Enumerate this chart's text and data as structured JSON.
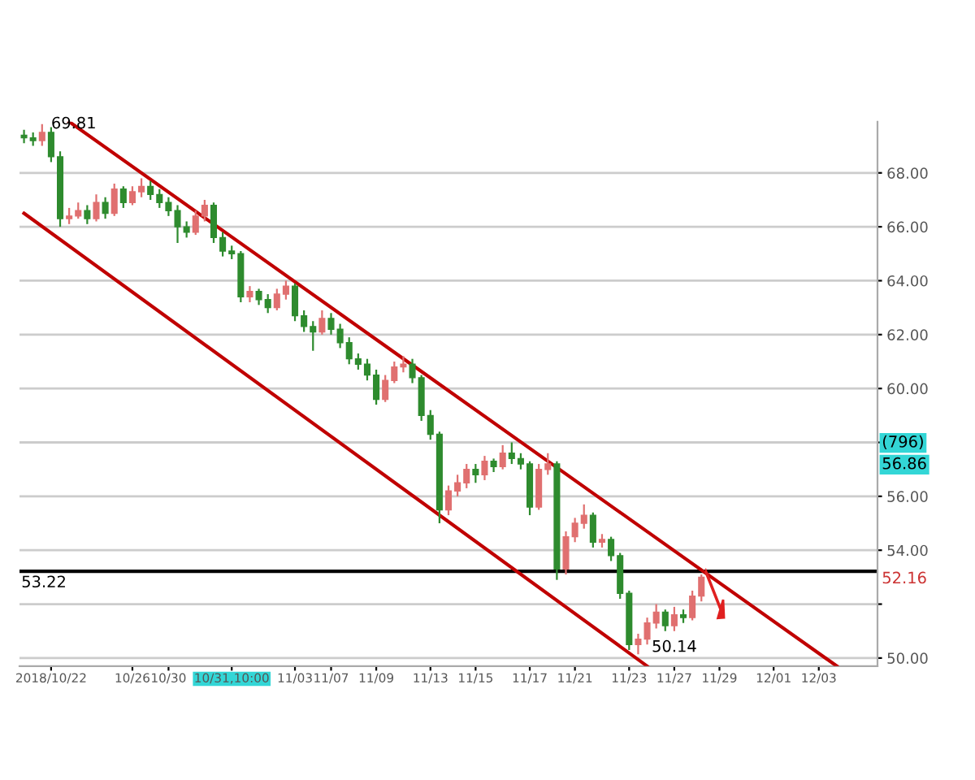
{
  "chart_data": {
    "type": "candlestick",
    "categories": [
      null,
      null,
      null,
      "2018/10/22",
      null,
      null,
      null,
      null,
      null,
      null,
      null,
      null,
      "10/26",
      null,
      null,
      null,
      "10/30",
      null,
      null,
      null,
      null,
      null,
      null,
      "10/31,10:00",
      null,
      null,
      null,
      null,
      null,
      null,
      "11/03",
      null,
      null,
      null,
      "11/07",
      null,
      null,
      null,
      null,
      "11/09",
      null,
      null,
      null,
      null,
      null,
      "11/13",
      null,
      null,
      null,
      null,
      "11/15",
      null,
      null,
      null,
      null,
      null,
      "11/17",
      null,
      null,
      null,
      null,
      "11/21",
      null,
      null,
      null,
      null,
      null,
      "11/23",
      null,
      null,
      null,
      null,
      "11/27",
      null,
      null,
      null,
      null,
      "11/29",
      null,
      null,
      null,
      null,
      null,
      "12/01",
      null,
      null,
      null,
      null,
      "12/03",
      null,
      null,
      null,
      null,
      null,
      null
    ],
    "ohlc": [
      [
        69.4,
        69.6,
        69.1,
        69.3
      ],
      [
        69.3,
        69.5,
        69.0,
        69.2
      ],
      [
        69.2,
        69.81,
        69.0,
        69.5
      ],
      [
        69.5,
        69.7,
        68.4,
        68.6
      ],
      [
        68.6,
        68.8,
        66.0,
        66.3
      ],
      [
        66.3,
        66.7,
        66.1,
        66.4
      ],
      [
        66.4,
        66.9,
        66.3,
        66.6
      ],
      [
        66.6,
        66.8,
        66.1,
        66.3
      ],
      [
        66.3,
        67.2,
        66.2,
        66.9
      ],
      [
        66.9,
        67.1,
        66.3,
        66.5
      ],
      [
        66.5,
        67.6,
        66.4,
        67.4
      ],
      [
        67.4,
        67.5,
        66.7,
        66.9
      ],
      [
        66.9,
        67.5,
        66.8,
        67.3
      ],
      [
        67.3,
        67.8,
        67.1,
        67.5
      ],
      [
        67.5,
        67.7,
        67.0,
        67.2
      ],
      [
        67.2,
        67.4,
        66.7,
        66.9
      ],
      [
        66.9,
        67.1,
        66.4,
        66.6
      ],
      [
        66.6,
        66.8,
        65.4,
        66.0
      ],
      [
        66.0,
        66.2,
        65.6,
        65.8
      ],
      [
        65.8,
        66.6,
        65.7,
        66.4
      ],
      [
        66.4,
        67.0,
        66.2,
        66.8
      ],
      [
        66.8,
        66.9,
        65.4,
        65.6
      ],
      [
        65.6,
        65.8,
        64.9,
        65.1
      ],
      [
        65.1,
        65.3,
        64.8,
        65.0
      ],
      [
        65.0,
        65.1,
        63.2,
        63.4
      ],
      [
        63.4,
        63.8,
        63.2,
        63.6
      ],
      [
        63.6,
        63.7,
        63.1,
        63.3
      ],
      [
        63.3,
        63.5,
        62.8,
        63.0
      ],
      [
        63.0,
        63.7,
        62.9,
        63.5
      ],
      [
        63.5,
        64.0,
        63.3,
        63.8
      ],
      [
        63.8,
        63.9,
        62.5,
        62.7
      ],
      [
        62.7,
        62.9,
        62.1,
        62.3
      ],
      [
        62.3,
        62.5,
        61.4,
        62.1
      ],
      [
        62.1,
        62.9,
        62.0,
        62.6
      ],
      [
        62.6,
        62.8,
        62.0,
        62.2
      ],
      [
        62.2,
        62.4,
        61.5,
        61.7
      ],
      [
        61.7,
        61.9,
        60.9,
        61.1
      ],
      [
        61.1,
        61.3,
        60.7,
        60.9
      ],
      [
        60.9,
        61.1,
        60.3,
        60.5
      ],
      [
        60.5,
        60.7,
        59.4,
        59.6
      ],
      [
        59.6,
        60.5,
        59.5,
        60.3
      ],
      [
        60.3,
        61.0,
        60.2,
        60.8
      ],
      [
        60.8,
        61.2,
        60.6,
        60.9
      ],
      [
        60.9,
        61.1,
        60.2,
        60.4
      ],
      [
        60.4,
        60.5,
        58.8,
        59.0
      ],
      [
        59.0,
        59.2,
        58.1,
        58.3
      ],
      [
        58.3,
        58.4,
        55.0,
        55.5
      ],
      [
        55.5,
        56.4,
        55.3,
        56.2
      ],
      [
        56.2,
        56.8,
        56.0,
        56.5
      ],
      [
        56.5,
        57.2,
        56.3,
        57.0
      ],
      [
        57.0,
        57.2,
        56.5,
        56.8
      ],
      [
        56.8,
        57.5,
        56.6,
        57.3
      ],
      [
        57.3,
        57.4,
        56.9,
        57.1
      ],
      [
        57.1,
        57.9,
        57.0,
        57.6
      ],
      [
        57.6,
        58.0,
        57.2,
        57.4
      ],
      [
        57.4,
        57.6,
        57.0,
        57.2
      ],
      [
        57.2,
        57.3,
        55.3,
        55.6
      ],
      [
        55.6,
        57.2,
        55.5,
        57.0
      ],
      [
        57.0,
        57.6,
        56.8,
        57.2
      ],
      [
        57.2,
        57.3,
        52.9,
        53.3
      ],
      [
        53.3,
        54.7,
        53.1,
        54.5
      ],
      [
        54.5,
        55.2,
        54.3,
        55.0
      ],
      [
        55.0,
        55.7,
        54.8,
        55.3
      ],
      [
        55.3,
        55.4,
        54.1,
        54.3
      ],
      [
        54.3,
        54.6,
        54.1,
        54.4
      ],
      [
        54.4,
        54.5,
        53.6,
        53.8
      ],
      [
        53.8,
        53.9,
        52.2,
        52.4
      ],
      [
        52.4,
        52.5,
        50.3,
        50.5
      ],
      [
        50.5,
        50.9,
        50.14,
        50.7
      ],
      [
        50.7,
        51.5,
        50.5,
        51.3
      ],
      [
        51.3,
        52.0,
        51.1,
        51.7
      ],
      [
        51.7,
        51.8,
        51.0,
        51.2
      ],
      [
        51.2,
        51.9,
        51.0,
        51.6
      ],
      [
        51.6,
        51.8,
        51.3,
        51.5
      ],
      [
        51.5,
        52.5,
        51.4,
        52.3
      ],
      [
        52.3,
        53.1,
        52.1,
        53.0
      ],
      null,
      null,
      null,
      null,
      null,
      null,
      null,
      null,
      null,
      null,
      null,
      null,
      null,
      null,
      null,
      null,
      null,
      null,
      null
    ],
    "colors": [
      "#2e8b2e",
      "#2e8b2e",
      "#e07070",
      "#2e8b2e",
      "#2e8b2e",
      "#e07070",
      "#e07070",
      "#2e8b2e",
      "#e07070",
      "#2e8b2e",
      "#e07070",
      "#2e8b2e",
      "#e07070",
      "#e07070",
      "#2e8b2e",
      "#2e8b2e",
      "#2e8b2e",
      "#2e8b2e",
      "#2e8b2e",
      "#e07070",
      "#e07070",
      "#2e8b2e",
      "#2e8b2e",
      "#2e8b2e",
      "#2e8b2e",
      "#e07070",
      "#2e8b2e",
      "#2e8b2e",
      "#e07070",
      "#e07070",
      "#2e8b2e",
      "#2e8b2e",
      "#2e8b2e",
      "#e07070",
      "#2e8b2e",
      "#2e8b2e",
      "#2e8b2e",
      "#2e8b2e",
      "#2e8b2e",
      "#2e8b2e",
      "#e07070",
      "#e07070",
      "#e07070",
      "#2e8b2e",
      "#2e8b2e",
      "#2e8b2e",
      "#2e8b2e",
      "#e07070",
      "#e07070",
      "#e07070",
      "#2e8b2e",
      "#e07070",
      "#2e8b2e",
      "#e07070",
      "#2e8b2e",
      "#2e8b2e",
      "#2e8b2e",
      "#e07070",
      "#e07070",
      "#2e8b2e",
      "#e07070",
      "#e07070",
      "#e07070",
      "#2e8b2e",
      "#e07070",
      "#2e8b2e",
      "#2e8b2e",
      "#2e8b2e",
      "#e07070",
      "#e07070",
      "#e07070",
      "#2e8b2e",
      "#e07070",
      "#2e8b2e",
      "#e07070",
      "#e07070",
      null,
      null,
      null,
      null,
      null,
      null,
      null,
      null,
      null,
      null,
      null,
      null,
      null,
      null,
      null,
      null,
      null,
      null,
      null
    ],
    "series": [
      {
        "type": "line",
        "color": "#c00000",
        "values": [
          null,
          null,
          null,
          null,
          null,
          69.9,
          null,
          null,
          null,
          null,
          null,
          null,
          null,
          null,
          null,
          null,
          null,
          null,
          null,
          null,
          null,
          null,
          null,
          null,
          null,
          null,
          null,
          null,
          null,
          null,
          null,
          null,
          null,
          null,
          null,
          null,
          null,
          null,
          null,
          null,
          null,
          null,
          null,
          null,
          null,
          null,
          null,
          null,
          null,
          null,
          null,
          null,
          null,
          null,
          null,
          null,
          null,
          null,
          null,
          null,
          null,
          null,
          null,
          null,
          null,
          null,
          null,
          null,
          null,
          null,
          null,
          null,
          null,
          null,
          null,
          null,
          null,
          null,
          null,
          null,
          null,
          null,
          null,
          null,
          null,
          null,
          null,
          null,
          null,
          null,
          49.7,
          null,
          null,
          null,
          null
        ]
      },
      {
        "type": "line",
        "color": "#c00000",
        "values": [
          66.5,
          null,
          null,
          null,
          null,
          null,
          null,
          null,
          null,
          null,
          null,
          null,
          null,
          null,
          null,
          null,
          null,
          null,
          null,
          null,
          null,
          null,
          null,
          null,
          null,
          null,
          null,
          null,
          null,
          null,
          null,
          null,
          null,
          null,
          null,
          null,
          null,
          null,
          null,
          null,
          null,
          null,
          null,
          null,
          null,
          null,
          null,
          null,
          null,
          null,
          null,
          null,
          null,
          null,
          null,
          null,
          null,
          null,
          null,
          null,
          null,
          null,
          null,
          null,
          null,
          null,
          null,
          null,
          null,
          49.7,
          null,
          null,
          null,
          null,
          null,
          null,
          null,
          null,
          null,
          null,
          null,
          null,
          null,
          null,
          null,
          null,
          null,
          null,
          null,
          null,
          null,
          null,
          null,
          null,
          null
        ]
      }
    ],
    "ref_lines": [
      {
        "axis": "y",
        "value": 53.22,
        "label": "53.22",
        "color": "#000000"
      }
    ],
    "annotations": [
      "69.81",
      "50.14",
      "(796)",
      "56.86",
      "52.16"
    ],
    "ylim": [
      49.7,
      69.9
    ],
    "yticks": [
      {
        "value": 50,
        "label": "50.00"
      },
      {
        "value": 52,
        "label": null
      },
      {
        "value": 54,
        "label": "54.00"
      },
      {
        "value": 56,
        "label": "56.00"
      },
      {
        "value": 58,
        "label": null
      },
      {
        "value": 60,
        "label": "60.00"
      },
      {
        "value": 62,
        "label": "62.00"
      },
      {
        "value": 64,
        "label": "64.00"
      },
      {
        "value": 66,
        "label": "66.00"
      },
      {
        "value": 68,
        "label": "68.00"
      }
    ],
    "grid": "y"
  }
}
